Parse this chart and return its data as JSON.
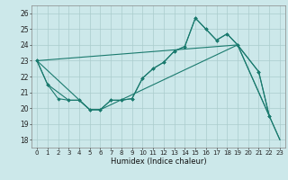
{
  "xlabel": "Humidex (Indice chaleur)",
  "background_color": "#cce8ea",
  "grid_color": "#aacccc",
  "line_color": "#1a7a6e",
  "xlim": [
    -0.5,
    23.5
  ],
  "ylim": [
    17.5,
    26.5
  ],
  "yticks": [
    18,
    19,
    20,
    21,
    22,
    23,
    24,
    25,
    26
  ],
  "xticks": [
    0,
    1,
    2,
    3,
    4,
    5,
    6,
    7,
    8,
    9,
    10,
    11,
    12,
    13,
    14,
    15,
    16,
    17,
    18,
    19,
    20,
    21,
    22,
    23
  ],
  "series1_x": [
    0,
    1,
    2,
    3,
    4,
    5,
    6,
    7,
    8,
    9,
    10,
    11,
    12,
    13,
    14,
    15,
    16,
    17,
    18,
    19,
    21,
    22
  ],
  "series1_y": [
    23.0,
    21.5,
    20.6,
    20.5,
    20.5,
    19.9,
    19.9,
    20.5,
    20.5,
    20.6,
    21.9,
    22.5,
    22.9,
    23.6,
    23.9,
    25.7,
    25.0,
    24.3,
    24.7,
    24.0,
    22.3,
    19.5
  ],
  "series2_x": [
    0,
    1,
    3,
    4,
    5,
    6,
    7,
    8,
    9,
    10,
    11,
    12,
    13,
    14,
    15,
    16,
    17,
    18,
    19,
    21,
    22
  ],
  "series2_y": [
    23.0,
    21.5,
    20.5,
    20.5,
    19.9,
    19.9,
    20.5,
    20.5,
    20.6,
    21.9,
    22.5,
    22.9,
    23.6,
    23.9,
    25.7,
    25.0,
    24.3,
    24.7,
    24.0,
    22.3,
    19.5
  ],
  "series3_x": [
    0,
    5,
    6,
    19,
    22,
    23
  ],
  "series3_y": [
    23.0,
    19.9,
    19.9,
    24.0,
    19.5,
    18.0
  ],
  "series4_x": [
    0,
    19,
    23
  ],
  "series4_y": [
    23.0,
    24.0,
    18.0
  ]
}
